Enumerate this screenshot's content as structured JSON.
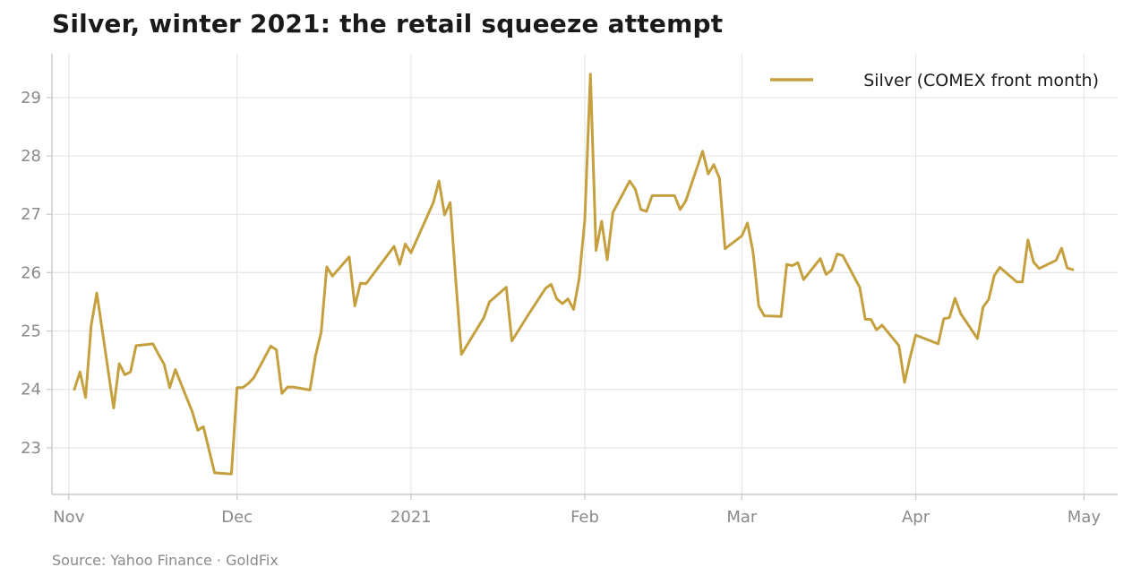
{
  "title": "Silver, winter 2021: the retail squeeze attempt",
  "source": "Source: Yahoo Finance · GoldFix",
  "colors": {
    "series": "#C5A03F",
    "grid": "#e6e6e6",
    "axis": "#c8c8c8",
    "text": "#8a8a8a"
  },
  "chart_data": {
    "type": "line",
    "title": "Silver, winter 2021: the retail squeeze attempt",
    "xlabel": "",
    "ylabel": "",
    "ylim": [
      22.2,
      29.75
    ],
    "xlim": [
      "2020-10-29",
      "2021-05-07"
    ],
    "yticks": [
      23,
      24,
      25,
      26,
      27,
      28,
      29
    ],
    "xticks": [
      {
        "date": "2020-11-01",
        "label": "Nov"
      },
      {
        "date": "2020-12-01",
        "label": "Dec"
      },
      {
        "date": "2021-01-01",
        "label": "2021"
      },
      {
        "date": "2021-02-01",
        "label": "Feb"
      },
      {
        "date": "2021-03-01",
        "label": "Mar"
      },
      {
        "date": "2021-04-01",
        "label": "Apr"
      },
      {
        "date": "2021-05-01",
        "label": "May"
      }
    ],
    "grid": true,
    "legend_position": "top-right",
    "series": [
      {
        "name": "Silver (COMEX front month)",
        "points": [
          [
            "2020-11-02",
            24.0
          ],
          [
            "2020-11-03",
            24.3
          ],
          [
            "2020-11-04",
            23.86
          ],
          [
            "2020-11-05",
            25.1
          ],
          [
            "2020-11-06",
            25.65
          ],
          [
            "2020-11-09",
            23.68
          ],
          [
            "2020-11-10",
            24.44
          ],
          [
            "2020-11-11",
            24.25
          ],
          [
            "2020-11-12",
            24.3
          ],
          [
            "2020-11-13",
            24.75
          ],
          [
            "2020-11-16",
            24.78
          ],
          [
            "2020-11-17",
            24.6
          ],
          [
            "2020-11-18",
            24.43
          ],
          [
            "2020-11-19",
            24.03
          ],
          [
            "2020-11-20",
            24.34
          ],
          [
            "2020-11-23",
            23.62
          ],
          [
            "2020-11-24",
            23.3
          ],
          [
            "2020-11-25",
            23.36
          ],
          [
            "2020-11-27",
            22.57
          ],
          [
            "2020-11-30",
            22.55
          ],
          [
            "2020-12-01",
            24.03
          ],
          [
            "2020-12-02",
            24.03
          ],
          [
            "2020-12-03",
            24.1
          ],
          [
            "2020-12-04",
            24.2
          ],
          [
            "2020-12-07",
            24.74
          ],
          [
            "2020-12-08",
            24.68
          ],
          [
            "2020-12-09",
            23.93
          ],
          [
            "2020-12-10",
            24.04
          ],
          [
            "2020-12-11",
            24.04
          ],
          [
            "2020-12-14",
            23.99
          ],
          [
            "2020-12-15",
            24.58
          ],
          [
            "2020-12-16",
            24.98
          ],
          [
            "2020-12-17",
            26.1
          ],
          [
            "2020-12-18",
            25.94
          ],
          [
            "2020-12-21",
            26.27
          ],
          [
            "2020-12-22",
            25.43
          ],
          [
            "2020-12-23",
            25.82
          ],
          [
            "2020-12-24",
            25.81
          ],
          [
            "2020-12-29",
            26.45
          ],
          [
            "2020-12-30",
            26.14
          ],
          [
            "2020-12-31",
            26.49
          ],
          [
            "2021-01-01",
            26.34
          ],
          [
            "2021-01-05",
            27.2
          ],
          [
            "2021-01-06",
            27.57
          ],
          [
            "2021-01-07",
            26.99
          ],
          [
            "2021-01-08",
            27.2
          ],
          [
            "2021-01-09",
            25.86
          ],
          [
            "2021-01-10",
            24.6
          ],
          [
            "2021-01-14",
            25.23
          ],
          [
            "2021-01-15",
            25.5
          ],
          [
            "2021-01-18",
            25.75
          ],
          [
            "2021-01-19",
            24.83
          ],
          [
            "2021-01-22",
            25.29
          ],
          [
            "2021-01-25",
            25.73
          ],
          [
            "2021-01-26",
            25.8
          ],
          [
            "2021-01-27",
            25.55
          ],
          [
            "2021-01-28",
            25.47
          ],
          [
            "2021-01-29",
            25.55
          ],
          [
            "2021-01-30",
            25.37
          ],
          [
            "2021-01-31",
            25.9
          ],
          [
            "2021-02-01",
            26.9
          ],
          [
            "2021-02-02",
            29.4
          ],
          [
            "2021-02-03",
            26.38
          ],
          [
            "2021-02-04",
            26.88
          ],
          [
            "2021-02-05",
            26.22
          ],
          [
            "2021-02-06",
            27.03
          ],
          [
            "2021-02-09",
            27.57
          ],
          [
            "2021-02-10",
            27.43
          ],
          [
            "2021-02-11",
            27.08
          ],
          [
            "2021-02-12",
            27.05
          ],
          [
            "2021-02-13",
            27.32
          ],
          [
            "2021-02-17",
            27.32
          ],
          [
            "2021-02-18",
            27.08
          ],
          [
            "2021-02-19",
            27.23
          ],
          [
            "2021-02-22",
            28.08
          ],
          [
            "2021-02-23",
            27.69
          ],
          [
            "2021-02-24",
            27.85
          ],
          [
            "2021-02-25",
            27.62
          ],
          [
            "2021-02-26",
            26.41
          ],
          [
            "2021-03-01",
            26.63
          ],
          [
            "2021-03-02",
            26.85
          ],
          [
            "2021-03-03",
            26.35
          ],
          [
            "2021-03-04",
            25.43
          ],
          [
            "2021-03-05",
            25.26
          ],
          [
            "2021-03-08",
            25.25
          ],
          [
            "2021-03-09",
            26.14
          ],
          [
            "2021-03-10",
            26.12
          ],
          [
            "2021-03-11",
            26.17
          ],
          [
            "2021-03-12",
            25.88
          ],
          [
            "2021-03-15",
            26.24
          ],
          [
            "2021-03-16",
            25.97
          ],
          [
            "2021-03-17",
            26.04
          ],
          [
            "2021-03-18",
            26.32
          ],
          [
            "2021-03-19",
            26.29
          ],
          [
            "2021-03-22",
            25.75
          ],
          [
            "2021-03-23",
            25.2
          ],
          [
            "2021-03-24",
            25.2
          ],
          [
            "2021-03-25",
            25.02
          ],
          [
            "2021-03-26",
            25.1
          ],
          [
            "2021-03-29",
            24.75
          ],
          [
            "2021-03-30",
            24.12
          ],
          [
            "2021-03-31",
            24.55
          ],
          [
            "2021-04-01",
            24.93
          ],
          [
            "2021-04-05",
            24.78
          ],
          [
            "2021-04-06",
            25.21
          ],
          [
            "2021-04-07",
            25.23
          ],
          [
            "2021-04-08",
            25.56
          ],
          [
            "2021-04-09",
            25.3
          ],
          [
            "2021-04-12",
            24.87
          ],
          [
            "2021-04-13",
            25.41
          ],
          [
            "2021-04-14",
            25.54
          ],
          [
            "2021-04-15",
            25.95
          ],
          [
            "2021-04-16",
            26.09
          ],
          [
            "2021-04-19",
            25.84
          ],
          [
            "2021-04-20",
            25.84
          ],
          [
            "2021-04-21",
            26.56
          ],
          [
            "2021-04-22",
            26.18
          ],
          [
            "2021-04-23",
            26.07
          ],
          [
            "2021-04-26",
            26.21
          ],
          [
            "2021-04-27",
            26.42
          ],
          [
            "2021-04-28",
            26.08
          ],
          [
            "2021-04-29",
            26.05
          ]
        ]
      }
    ]
  }
}
